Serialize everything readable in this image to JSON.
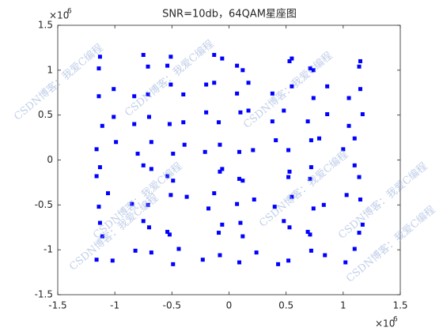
{
  "chart_data": {
    "type": "scatter",
    "title": "SNR=10db，64QAM星座图",
    "x": [
      -1.02,
      -1.16,
      -0.82,
      -0.68,
      -0.44,
      -0.49,
      -0.23,
      -0.08,
      0.24,
      0.09,
      0.43,
      0.52,
      0.84,
      0.72,
      1.02,
      1.1,
      -1.13,
      -1.11,
      -0.75,
      -0.7,
      -0.54,
      -0.52,
      -0.06,
      -0.09,
      0.12,
      0.1,
      0.53,
      0.48,
      0.71,
      0.69,
      1.14,
      1.17,
      -1.06,
      -1.14,
      -0.85,
      -0.71,
      -0.37,
      -0.51,
      -0.18,
      -0.13,
      0.22,
      0.07,
      0.4,
      0.55,
      0.83,
      0.74,
      1.03,
      1.15,
      -1.16,
      -1.13,
      -0.68,
      -0.75,
      -0.49,
      -0.54,
      -0.08,
      -0.06,
      0.09,
      0.12,
      0.52,
      0.53,
      0.72,
      0.71,
      1.1,
      1.14,
      -0.99,
      -1.16,
      -0.8,
      -0.68,
      -0.39,
      -0.49,
      -0.21,
      -0.08,
      0.21,
      0.09,
      0.41,
      0.52,
      0.79,
      0.72,
      1.0,
      1.1,
      -1.11,
      -1.01,
      -0.7,
      -0.83,
      -0.52,
      -0.4,
      -0.09,
      -0.2,
      0.1,
      0.17,
      0.48,
      0.38,
      0.69,
      0.86,
      1.17,
      1.05,
      -1.01,
      -1.14,
      -0.83,
      -0.71,
      -0.4,
      -0.51,
      -0.2,
      -0.13,
      0.17,
      0.07,
      0.38,
      0.55,
      0.86,
      0.74,
      1.05,
      1.15,
      -1.14,
      -1.13,
      -0.71,
      -0.75,
      -0.51,
      -0.54,
      -0.13,
      -0.06,
      0.07,
      0.12,
      0.55,
      0.53,
      0.74,
      0.71,
      1.15,
      1.14
    ],
    "y": [
      -1.12,
      -1.11,
      -1.01,
      -1.03,
      -0.99,
      -1.16,
      -1.11,
      -1.06,
      -1.03,
      -1.14,
      -1.16,
      -1.12,
      -1.06,
      -1.01,
      -1.14,
      -0.99,
      -0.7,
      -0.85,
      -0.68,
      -0.75,
      -0.8,
      -0.83,
      -0.72,
      -0.81,
      -0.85,
      -0.7,
      -0.75,
      -0.68,
      -0.83,
      -0.8,
      -0.81,
      -0.72,
      -0.37,
      -0.52,
      -0.49,
      -0.5,
      -0.41,
      -0.39,
      -0.54,
      -0.37,
      -0.44,
      -0.49,
      -0.52,
      -0.41,
      -0.5,
      -0.54,
      -0.39,
      -0.44,
      -0.18,
      -0.08,
      -0.1,
      -0.06,
      -0.23,
      -0.18,
      -0.13,
      -0.1,
      -0.21,
      -0.23,
      -0.19,
      -0.13,
      -0.08,
      -0.21,
      -0.06,
      -0.19,
      0.2,
      0.12,
      0.07,
      0.2,
      0.17,
      0.07,
      0.09,
      0.17,
      0.11,
      0.09,
      0.22,
      0.11,
      0.24,
      0.22,
      0.12,
      0.24,
      0.38,
      0.48,
      0.48,
      0.4,
      0.4,
      0.42,
      0.42,
      0.53,
      0.53,
      0.55,
      0.55,
      0.43,
      0.43,
      0.51,
      0.51,
      0.38,
      0.79,
      0.71,
      0.71,
      0.73,
      0.73,
      0.84,
      0.84,
      0.86,
      0.86,
      0.74,
      0.74,
      0.82,
      0.82,
      0.69,
      0.69,
      0.79,
      1.02,
      1.15,
      1.04,
      1.17,
      1.15,
      1.05,
      1.17,
      1.13,
      1.05,
      1.0,
      1.13,
      1.1,
      1.0,
      1.02,
      1.1,
      1.04
    ],
    "color": "#0000ff",
    "xlim": [
      -1.5,
      1.5
    ],
    "ylim": [
      -1.5,
      1.5
    ],
    "xticks": [
      -1.5,
      -1,
      -0.5,
      0,
      0.5,
      1,
      1.5
    ],
    "yticks": [
      -1.5,
      -1,
      -0.5,
      0,
      0.5,
      1,
      1.5
    ],
    "x_multiplier": "×10",
    "x_multiplier_power": "6",
    "y_multiplier": "×10",
    "y_multiplier_power": "6",
    "watermark": "CSDN博客：我爱C编程"
  }
}
